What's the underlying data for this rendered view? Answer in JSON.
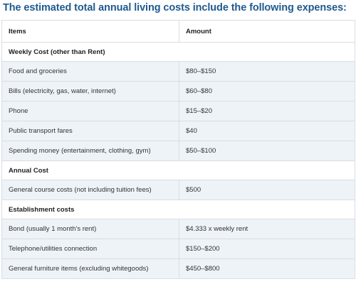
{
  "heading": "The estimated total annual living costs include the following expenses:",
  "table": {
    "columns": [
      "Items",
      "Amount"
    ],
    "sections": [
      {
        "title": "Weekly Cost (other than Rent)",
        "rows": [
          {
            "item": "Food and groceries",
            "amount": "$80–$150"
          },
          {
            "item": "Bills (electricity, gas, water, internet)",
            "amount": "$60–$80"
          },
          {
            "item": "Phone",
            "amount": "$15–$20"
          },
          {
            "item": "Public transport fares",
            "amount": "$40"
          },
          {
            "item": "Spending money (entertainment, clothing, gym)",
            "amount": "$50–$100"
          }
        ]
      },
      {
        "title": "Annual Cost",
        "rows": [
          {
            "item": "General course costs (not including tuition fees)",
            "amount": "$500"
          }
        ]
      },
      {
        "title": "Establishment costs",
        "rows": [
          {
            "item": "Bond (usually 1 month's rent)",
            "amount": "$4.333 x weekly rent"
          },
          {
            "item": "Telephone/utilities connection",
            "amount": "$150–$200"
          },
          {
            "item": "General furniture items (excluding whitegoods)",
            "amount": "$450–$800"
          }
        ]
      }
    ]
  },
  "colors": {
    "heading": "#1f5a8f",
    "row_fill": "#eef3f8",
    "border": "#d9dde2"
  }
}
